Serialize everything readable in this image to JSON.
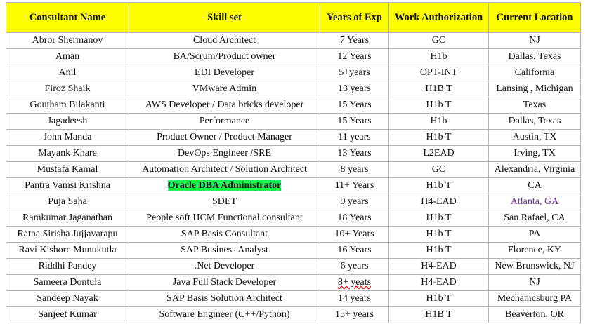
{
  "table": {
    "header": [
      "Consultant Name",
      "Skill set",
      "Years of Exp",
      "Work Authorization",
      "Current Location"
    ],
    "rows": [
      [
        "Abror Shermanov",
        "Cloud Architect",
        "7 Years",
        "GC",
        "NJ"
      ],
      [
        "Aman",
        "BA/Scrum/Product owner",
        "12 Years",
        "H1b",
        "Dallas, Texas"
      ],
      [
        "Anil",
        "EDI Developer",
        "5+years",
        "OPT-INT",
        "California"
      ],
      [
        "Firoz Shaik",
        "VMware Admin",
        "13 years",
        "H1B T",
        "Lansing , Michigan"
      ],
      [
        "Goutham Bilakanti",
        "AWS Developer / Data bricks developer",
        "15 Years",
        "H1b T",
        "Texas"
      ],
      [
        "Jagadeesh",
        "Performance",
        "15 Years",
        "H1b",
        "Dallas, Texas"
      ],
      [
        "John Manda",
        "Product Owner / Product Manager",
        "11 years",
        "H1b T",
        "Austin, TX"
      ],
      [
        "Mayank Khare",
        "DevOps Engineer /SRE",
        "13 Years",
        "L2EAD",
        "Irving, TX"
      ],
      [
        "Mustafa Kamal",
        "Automation Architect / Solution Architect",
        "8 years",
        "GC",
        "Alexandria, Virginia"
      ],
      [
        "Pantra Vamsi Krishna",
        "Oracle DBA Administrator",
        "11+ Years",
        "H1b T",
        "CA"
      ],
      [
        "Puja Saha",
        "SDET",
        "9 years",
        "H4-EAD",
        "Atlanta, GA"
      ],
      [
        "Ramkumar Jaganathan",
        "People soft HCM Functional consultant",
        "18 Years",
        "H1b T",
        "San Rafael, CA"
      ],
      [
        "Ratna Sirisha Jujjavarapu",
        "SAP Basis Consultant",
        "10+ Years",
        "H1b T",
        "PA"
      ],
      [
        "Ravi Kishore Munukutla",
        "SAP Business Analyst",
        "16 Years",
        "H1b T",
        "Florence, KY"
      ],
      [
        "Riddhi Pandey",
        ".Net Developer",
        "6 years",
        "H4-EAD",
        "New Brunswick, NJ"
      ],
      [
        "Sameera Dontula",
        "Java Full Stack Developer",
        "8+ yeats",
        "H4-EAD",
        "NJ"
      ],
      [
        "Sandeep Nayak",
        "SAP Basis Solution Architect",
        "14 years",
        "H1b T",
        "Mechanicsburg PA"
      ],
      [
        "Sanjeet Kumar",
        "Software Engineer (C++/Python)",
        "15+ years",
        "H1B T",
        "Beaverton, OR"
      ]
    ]
  }
}
